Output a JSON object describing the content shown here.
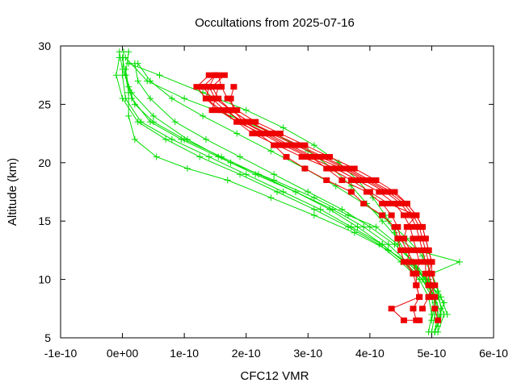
{
  "chart_data": {
    "type": "line",
    "title": "Occultations from 2025-07-16",
    "xlabel": "CFC12 VMR",
    "ylabel": "Altitude (km)",
    "xlim": [
      -1e-10,
      6e-10
    ],
    "ylim": [
      5,
      30
    ],
    "x_ticks": [
      -1e-10,
      0,
      1e-10,
      2e-10,
      3e-10,
      4e-10,
      5e-10,
      6e-10
    ],
    "x_tick_labels": [
      "-1e-10",
      "0e+00",
      "1e-10",
      "2e-10",
      "3e-10",
      "4e-10",
      "5e-10",
      "6e-10"
    ],
    "y_ticks": [
      5,
      10,
      15,
      20,
      25,
      30
    ],
    "y_tick_labels": [
      "5",
      "10",
      "15",
      "20",
      "25",
      "30"
    ],
    "grid": false,
    "legend": "none",
    "colors": {
      "green_series": "#00dd00",
      "red_series": "#ee0000",
      "axes": "#000000"
    },
    "series": [
      {
        "marker": "plus",
        "color": "#00dd00",
        "x": [
          2e-12,
          0.0,
          5e-12,
          3e-11,
          8e-11,
          1.4e-10,
          2e-10,
          2.6e-10,
          3.2e-10,
          3.7e-10,
          4.2e-10,
          4.55e-10,
          4.85e-10,
          5e-10,
          5.05e-10,
          5e-10
        ],
        "y": [
          29.5,
          27.5,
          25.5,
          23.5,
          22.0,
          20.5,
          19.0,
          17.5,
          16.0,
          14.5,
          13.0,
          11.5,
          10.0,
          8.5,
          7.0,
          5.5
        ]
      },
      {
        "marker": "plus",
        "color": "#00dd00",
        "x": [
          1e-11,
          5e-12,
          1.5e-11,
          4.5e-11,
          9.5e-11,
          1.55e-10,
          2.15e-10,
          2.8e-10,
          3.4e-10,
          3.9e-10,
          4.3e-10,
          4.6e-10,
          4.9e-10,
          5.05e-10,
          5.1e-10,
          5.05e-10
        ],
        "y": [
          29.5,
          27.5,
          25.5,
          23.5,
          22.0,
          20.5,
          19.0,
          17.5,
          16.0,
          14.5,
          13.0,
          11.5,
          10.0,
          8.5,
          7.0,
          5.5
        ]
      },
      {
        "marker": "plus",
        "color": "#00dd00",
        "x": [
          -5e-12,
          -1e-11,
          0.0,
          2.5e-11,
          7e-11,
          1.25e-10,
          1.9e-10,
          2.5e-10,
          3.1e-10,
          3.65e-10,
          4.15e-10,
          4.5e-10,
          4.8e-10,
          4.95e-10,
          5e-10,
          4.95e-10
        ],
        "y": [
          29.0,
          27.5,
          25.5,
          23.5,
          22.0,
          20.5,
          19.0,
          17.5,
          16.0,
          14.5,
          13.0,
          11.5,
          10.0,
          8.5,
          7.0,
          5.5
        ]
      },
      {
        "marker": "plus",
        "color": "#00dd00",
        "x": [
          2e-11,
          2.5e-11,
          4.5e-11,
          8.5e-11,
          1.35e-10,
          1.9e-10,
          2.45e-10,
          3e-10,
          3.55e-10,
          4e-10,
          4.4e-10,
          4.7e-10,
          4.95e-10,
          5.1e-10,
          5.2e-10,
          5.1e-10
        ],
        "y": [
          28.5,
          27.0,
          25.5,
          23.5,
          22.0,
          20.5,
          19.0,
          17.5,
          16.0,
          14.5,
          13.0,
          11.5,
          10.0,
          8.5,
          7.0,
          5.5
        ]
      },
      {
        "marker": "plus",
        "color": "#00dd00",
        "x": [
          1e-11,
          6e-11,
          1.3e-10,
          2e-10,
          2.6e-10,
          3.1e-10,
          3.5e-10,
          3.8e-10,
          4.05e-10,
          4.25e-10,
          4.4e-10,
          4.55e-10,
          4.75e-10,
          4.95e-10,
          5.05e-10,
          5e-10
        ],
        "y": [
          28.5,
          27.5,
          26.0,
          24.5,
          23.0,
          21.5,
          20.0,
          18.5,
          17.0,
          15.5,
          14.0,
          12.5,
          11.0,
          9.5,
          8.0,
          6.5
        ]
      },
      {
        "marker": "plus",
        "color": "#00dd00",
        "x": [
          5e-12,
          4e-11,
          1e-10,
          1.75e-10,
          2.45e-10,
          3e-10,
          3.4e-10,
          3.7e-10,
          3.95e-10,
          4.2e-10,
          4.45e-10,
          4.75e-10,
          5.45e-10,
          5e-10,
          5.15e-10,
          5.25e-10
        ],
        "y": [
          29.0,
          27.0,
          25.5,
          24.0,
          22.5,
          21.0,
          19.5,
          18.0,
          16.5,
          15.0,
          13.5,
          12.5,
          11.5,
          10.5,
          8.5,
          7.0
        ]
      },
      {
        "marker": "plus",
        "color": "#00dd00",
        "x": [
          5e-12,
          1e-11,
          2e-11,
          5e-11,
          1e-10,
          1.6e-10,
          2.2e-10,
          2.8e-10,
          3.35e-10,
          3.8e-10,
          4.2e-10,
          4.55e-10,
          4.85e-10,
          5.05e-10,
          5.15e-10,
          5.05e-10
        ],
        "y": [
          28.0,
          26.5,
          25.0,
          23.5,
          22.0,
          20.5,
          19.0,
          17.5,
          16.0,
          14.5,
          13.0,
          11.5,
          10.0,
          8.5,
          7.0,
          5.5
        ]
      },
      {
        "marker": "plus",
        "color": "#00dd00",
        "x": [
          0.0,
          5e-12,
          1e-11,
          1e-11,
          2e-11,
          5.5e-11,
          1.05e-10,
          1.7e-10,
          2.4e-10,
          3.1e-10,
          3.75e-10,
          4.3e-10,
          4.75e-10,
          5e-10,
          5.2e-10,
          5.1e-10
        ],
        "y": [
          29.0,
          27.5,
          26.0,
          24.0,
          22.0,
          20.5,
          19.5,
          18.5,
          17.0,
          15.5,
          14.0,
          12.5,
          11.0,
          9.5,
          8.0,
          6.5
        ]
      },
      {
        "marker": "plus",
        "color": "#00dd00",
        "x": [
          -5e-12,
          0.0,
          1.5e-11,
          5e-11,
          1.05e-10,
          1.75e-10,
          2.45e-10,
          3.1e-10,
          3.65e-10,
          4.1e-10,
          4.45e-10,
          4.7e-10,
          4.9e-10,
          5.05e-10,
          5.1e-10,
          5.05e-10
        ],
        "y": [
          29.5,
          28.0,
          26.0,
          24.0,
          22.0,
          20.0,
          18.5,
          17.0,
          15.5,
          14.5,
          13.0,
          11.5,
          10.0,
          8.5,
          7.0,
          5.5
        ]
      },
      {
        "marker": "plus",
        "color": "#00dd00",
        "x": [
          2.5e-11,
          4.5e-11,
          8e-11,
          1.3e-10,
          1.85e-10,
          2.4e-10,
          2.95e-10,
          3.45e-10,
          3.9e-10,
          4.3e-10,
          4.6e-10,
          4.85e-10,
          5e-10,
          5.1e-10,
          5.15e-10,
          5.1e-10
        ],
        "y": [
          28.5,
          27.0,
          25.5,
          24.0,
          22.5,
          21.0,
          19.5,
          18.0,
          16.5,
          15.0,
          13.5,
          12.0,
          10.5,
          9.0,
          7.5,
          6.0
        ]
      },
      {
        "marker": "square",
        "color": "#ee0000",
        "x": [
          1.4e-10,
          1.2e-10,
          1.35e-10,
          1.55e-10,
          1.85e-10,
          2.25e-10,
          2.6e-10,
          3e-10,
          3.45e-10,
          3.8e-10,
          4.15e-10,
          4.4e-10,
          4.55e-10,
          4.65e-10,
          4.7e-10,
          4.75e-10,
          4.8e-10,
          4.75e-10
        ],
        "y": [
          27.5,
          26.5,
          25.5,
          24.5,
          23.5,
          22.5,
          21.5,
          20.5,
          19.5,
          18.5,
          17.5,
          16.5,
          15.5,
          14.5,
          13.5,
          12.5,
          11.5,
          10.5
        ]
      },
      {
        "marker": "square",
        "color": "#ee0000",
        "x": [
          1.5e-10,
          1.3e-10,
          1.45e-10,
          1.65e-10,
          1.95e-10,
          2.35e-10,
          2.7e-10,
          3.1e-10,
          3.55e-10,
          3.9e-10,
          4.25e-10,
          4.5e-10,
          4.65e-10,
          4.75e-10,
          4.8e-10,
          4.85e-10,
          4.9e-10,
          4.9e-10,
          4.95e-10
        ],
        "y": [
          27.5,
          26.5,
          25.5,
          24.5,
          23.5,
          22.5,
          21.5,
          20.5,
          19.5,
          18.5,
          17.5,
          16.5,
          15.5,
          14.5,
          13.5,
          12.5,
          11.5,
          10.5,
          9.5
        ]
      },
      {
        "marker": "square",
        "color": "#ee0000",
        "x": [
          1.65e-10,
          1.45e-10,
          1.55e-10,
          1.75e-10,
          2.05e-10,
          2.45e-10,
          2.85e-10,
          3.25e-10,
          3.65e-10,
          4e-10,
          4.35e-10,
          4.6e-10,
          4.75e-10,
          4.85e-10,
          4.9e-10,
          4.95e-10,
          5e-10,
          4.95e-10,
          5e-10,
          4.95e-10
        ],
        "y": [
          27.5,
          26.5,
          25.5,
          24.5,
          23.5,
          22.5,
          21.5,
          20.5,
          19.5,
          18.5,
          17.5,
          16.5,
          15.5,
          14.5,
          13.5,
          12.5,
          11.5,
          10.5,
          9.5,
          8.5
        ]
      },
      {
        "marker": "square",
        "color": "#ee0000",
        "x": [
          1.55e-10,
          1.6e-10,
          1.7e-10,
          1.85e-10,
          2.15e-10,
          2.55e-10,
          2.95e-10,
          3.35e-10,
          3.75e-10,
          4.1e-10,
          4.4e-10,
          4.6e-10,
          4.75e-10,
          4.85e-10,
          4.9e-10,
          4.95e-10,
          5e-10,
          5e-10,
          5.05e-10,
          4.95e-10,
          4.85e-10
        ],
        "y": [
          27.5,
          26.5,
          25.5,
          24.5,
          23.5,
          22.5,
          21.5,
          20.5,
          19.5,
          18.5,
          17.5,
          16.5,
          15.5,
          14.5,
          13.5,
          12.5,
          11.5,
          10.5,
          9.5,
          8.5,
          7.5
        ]
      },
      {
        "marker": "square",
        "color": "#ee0000",
        "x": [
          1.5e-10,
          1.4e-10,
          1.5e-10,
          1.75e-10,
          2.05e-10,
          2.4e-10,
          2.8e-10,
          3.2e-10,
          3.6e-10,
          3.95e-10,
          4.3e-10,
          4.55e-10,
          4.7e-10,
          4.8e-10,
          4.85e-10,
          4.9e-10,
          4.95e-10,
          4.95e-10,
          5e-10,
          5.05e-10,
          5.05e-10,
          5.1e-10
        ],
        "y": [
          27.5,
          26.5,
          25.5,
          24.5,
          23.5,
          22.5,
          21.5,
          20.5,
          19.5,
          18.5,
          17.5,
          16.5,
          15.5,
          14.5,
          13.5,
          12.5,
          11.5,
          10.5,
          9.5,
          8.5,
          7.5,
          6.5
        ]
      },
      {
        "marker": "square",
        "color": "#ee0000",
        "x": [
          1.3e-10,
          1.55e-10,
          1.45e-10,
          1.7e-10,
          1.9e-10,
          2.2e-10,
          2.45e-10,
          2.65e-10,
          2.95e-10,
          3.3e-10,
          3.7e-10,
          3.9e-10,
          4.2e-10,
          4.4e-10,
          4.45e-10,
          4.5e-10,
          4.55e-10,
          4.7e-10,
          4.75e-10,
          4.8e-10,
          4.35e-10,
          4.55e-10,
          4.8e-10
        ],
        "y": [
          26.5,
          26.5,
          24.5,
          24.5,
          23.5,
          22.5,
          21.5,
          20.5,
          19.5,
          18.5,
          17.5,
          16.5,
          15.5,
          14.5,
          13.5,
          12.5,
          11.5,
          10.5,
          9.5,
          8.5,
          7.5,
          6.5,
          6.5
        ]
      },
      {
        "marker": "square",
        "color": "#ee0000",
        "x": [
          1.8e-10,
          1.75e-10,
          1.8e-10,
          1.95e-10,
          2.3e-10,
          2.65e-10,
          3.05e-10,
          3.3e-10,
          3.55e-10,
          3.95e-10,
          4.2e-10,
          4.35e-10,
          4.45e-10,
          4.5e-10,
          4.6e-10,
          4.7e-10,
          4.75e-10,
          4.75e-10,
          4.8e-10,
          4.7e-10,
          4.75e-10
        ],
        "y": [
          26.5,
          25.5,
          24.5,
          23.5,
          22.5,
          21.5,
          20.5,
          19.5,
          18.5,
          17.5,
          16.5,
          15.5,
          14.5,
          13.5,
          12.5,
          11.5,
          10.5,
          9.5,
          8.5,
          7.5,
          6.5
        ]
      },
      {
        "marker": "square",
        "color": "#ee0000",
        "x": [
          1.4e-10,
          1.35e-10,
          1.6e-10,
          1.85e-10,
          2.1e-10,
          2.5e-10,
          2.9e-10,
          3.35e-10,
          3.7e-10,
          4e-10,
          4.3e-10,
          4.75e-10,
          4.6e-10,
          4.55e-10,
          4.65e-10,
          4.6e-10,
          4.7e-10
        ],
        "y": [
          26.5,
          25.5,
          24.5,
          23.5,
          22.5,
          21.5,
          20.5,
          19.5,
          18.5,
          17.5,
          16.5,
          15.5,
          14.5,
          13.5,
          12.5,
          11.5,
          10.5
        ]
      }
    ]
  }
}
